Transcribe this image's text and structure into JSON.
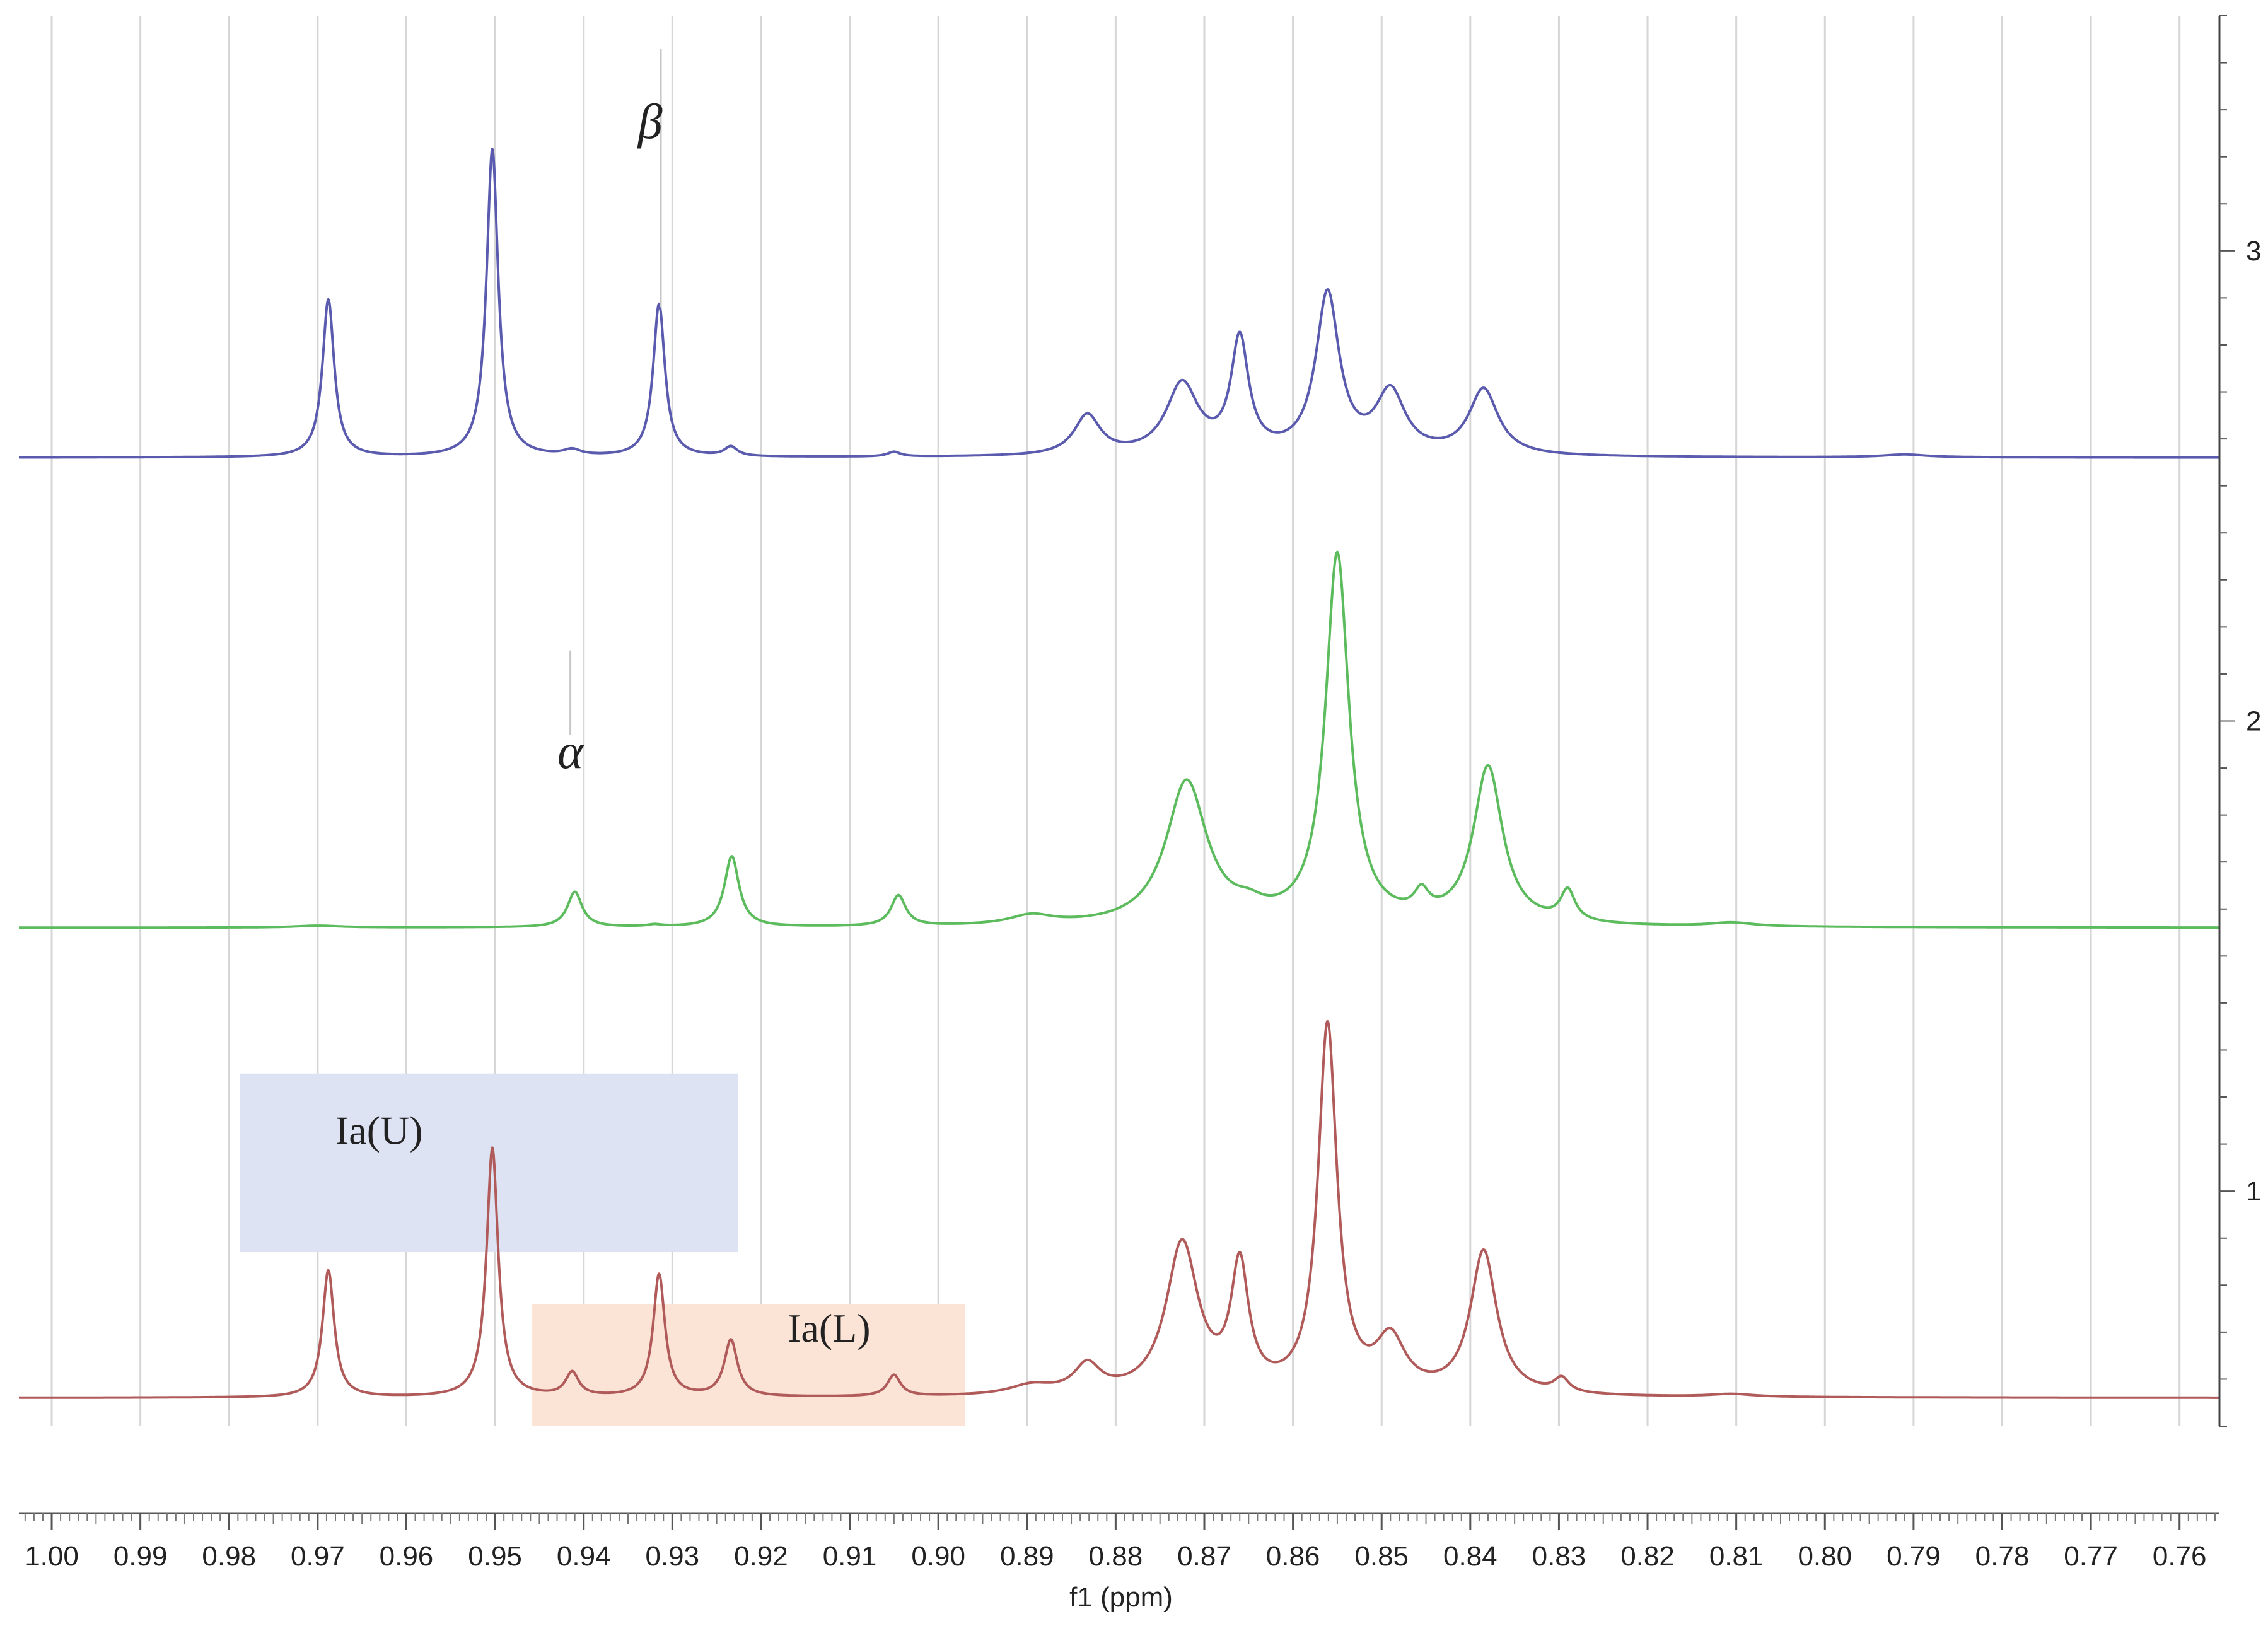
{
  "chart_data": {
    "type": "line",
    "title": "",
    "xlabel": "f1 (ppm)",
    "ylabel": "",
    "x_reversed": true,
    "xlim": [
      0.7555,
      1.0037
    ],
    "grid": "vertical",
    "x_ticks": [
      "1.00",
      "0.99",
      "0.98",
      "0.97",
      "0.96",
      "0.95",
      "0.94",
      "0.93",
      "0.92",
      "0.91",
      "0.90",
      "0.89",
      "0.88",
      "0.87",
      "0.86",
      "0.85",
      "0.84",
      "0.83",
      "0.82",
      "0.81",
      "0.80",
      "0.79",
      "0.78",
      "0.77",
      "0.76"
    ],
    "right_axis": {
      "ylim": [
        0.5,
        3.5
      ],
      "ticks": [
        "1",
        "2",
        "3"
      ]
    },
    "series": [
      {
        "name": "",
        "trace": 3,
        "color": "#5a5aae",
        "baseline": 2.56,
        "peaks": [
          {
            "ppm": 0.9688,
            "height": 0.335,
            "width": 0.0008
          },
          {
            "ppm": 0.9503,
            "height": 0.655,
            "width": 0.0008
          },
          {
            "ppm": 0.9413,
            "height": 0.012,
            "width": 0.0012
          },
          {
            "ppm": 0.9315,
            "height": 0.325,
            "width": 0.0008
          },
          {
            "ppm": 0.9234,
            "height": 0.02,
            "width": 0.0009
          },
          {
            "ppm": 0.905,
            "height": 0.01,
            "width": 0.0009
          },
          {
            "ppm": 0.8832,
            "height": 0.085,
            "width": 0.0018
          },
          {
            "ppm": 0.8725,
            "height": 0.15,
            "width": 0.0022
          },
          {
            "ppm": 0.866,
            "height": 0.24,
            "width": 0.0012
          },
          {
            "ppm": 0.8561,
            "height": 0.34,
            "width": 0.0016
          },
          {
            "ppm": 0.849,
            "height": 0.13,
            "width": 0.002
          },
          {
            "ppm": 0.8385,
            "height": 0.14,
            "width": 0.002
          },
          {
            "ppm": 0.791,
            "height": 0.006,
            "width": 0.003
          }
        ]
      },
      {
        "name": "",
        "trace": 2,
        "color": "#5cbb5c",
        "baseline": 1.56,
        "peaks": [
          {
            "ppm": 0.97,
            "height": 0.004,
            "width": 0.003
          },
          {
            "ppm": 0.941,
            "height": 0.075,
            "width": 0.001
          },
          {
            "ppm": 0.932,
            "height": 0.004,
            "width": 0.001
          },
          {
            "ppm": 0.9233,
            "height": 0.15,
            "width": 0.001
          },
          {
            "ppm": 0.9045,
            "height": 0.065,
            "width": 0.001
          },
          {
            "ppm": 0.8895,
            "height": 0.02,
            "width": 0.003
          },
          {
            "ppm": 0.872,
            "height": 0.305,
            "width": 0.0028
          },
          {
            "ppm": 0.865,
            "height": 0.02,
            "width": 0.002
          },
          {
            "ppm": 0.855,
            "height": 0.785,
            "width": 0.0016
          },
          {
            "ppm": 0.8455,
            "height": 0.045,
            "width": 0.001
          },
          {
            "ppm": 0.838,
            "height": 0.335,
            "width": 0.002
          },
          {
            "ppm": 0.829,
            "height": 0.065,
            "width": 0.001
          },
          {
            "ppm": 0.8105,
            "height": 0.008,
            "width": 0.003
          }
        ]
      },
      {
        "name": "",
        "trace": 1,
        "color": "#b05a5a",
        "baseline": 0.56,
        "peaks": [
          {
            "ppm": 0.9688,
            "height": 0.27,
            "width": 0.0008
          },
          {
            "ppm": 0.9503,
            "height": 0.53,
            "width": 0.0008
          },
          {
            "ppm": 0.9413,
            "height": 0.05,
            "width": 0.0009
          },
          {
            "ppm": 0.9315,
            "height": 0.26,
            "width": 0.0008
          },
          {
            "ppm": 0.9234,
            "height": 0.12,
            "width": 0.0009
          },
          {
            "ppm": 0.905,
            "height": 0.045,
            "width": 0.0009
          },
          {
            "ppm": 0.8895,
            "height": 0.02,
            "width": 0.003
          },
          {
            "ppm": 0.8832,
            "height": 0.06,
            "width": 0.0018
          },
          {
            "ppm": 0.8725,
            "height": 0.32,
            "width": 0.0022
          },
          {
            "ppm": 0.866,
            "height": 0.26,
            "width": 0.0012
          },
          {
            "ppm": 0.8561,
            "height": 0.78,
            "width": 0.0013
          },
          {
            "ppm": 0.849,
            "height": 0.11,
            "width": 0.002
          },
          {
            "ppm": 0.8385,
            "height": 0.305,
            "width": 0.0018
          },
          {
            "ppm": 0.8297,
            "height": 0.03,
            "width": 0.001
          },
          {
            "ppm": 0.8105,
            "height": 0.006,
            "width": 0.003
          }
        ]
      }
    ],
    "annotations": [
      {
        "text": "β",
        "ppm": 0.9325,
        "level": 3.24,
        "marker_ppm": 0.9313,
        "marker_level": [
          2.88,
          3.43
        ]
      },
      {
        "text": "α",
        "ppm": 0.9415,
        "level": 1.9,
        "marker_ppm": 0.9415,
        "marker_level": [
          1.97,
          2.15
        ]
      }
    ],
    "regions": [
      {
        "label": "Ia(U)",
        "label_ppm": 0.968,
        "label_level": 1.1,
        "ppm_range": [
          0.9788,
          0.9226
        ],
        "level_range": [
          0.87,
          1.25
        ],
        "color": "#dde3f2"
      },
      {
        "label": "Ia(L)",
        "label_ppm": 0.917,
        "label_level": 0.68,
        "ppm_range": [
          0.9458,
          0.897
        ],
        "level_range": [
          0.5,
          0.76
        ],
        "color": "#fbe4d6"
      }
    ]
  }
}
